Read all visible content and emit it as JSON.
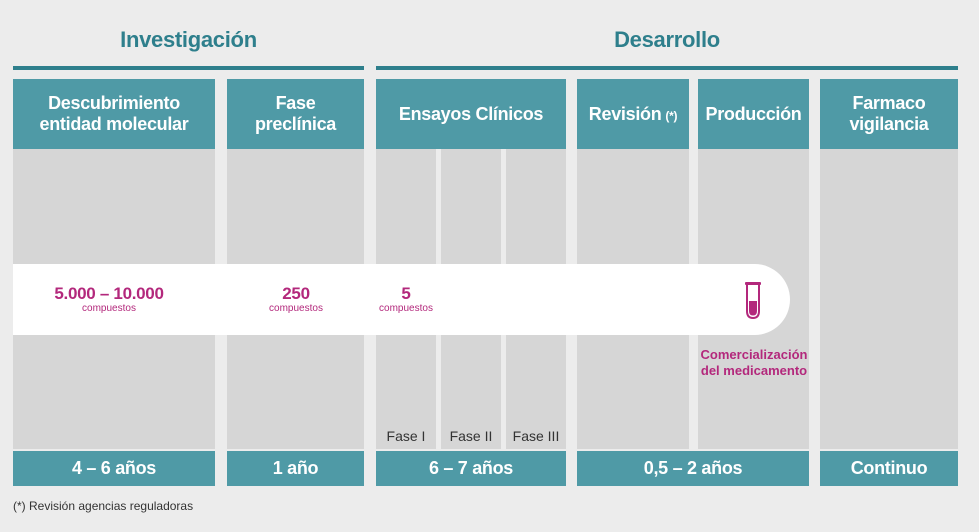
{
  "sections": {
    "investigation": "Investigación",
    "development": "Desarrollo"
  },
  "stages": [
    {
      "label": "Descubrimiento entidad molecular",
      "duration": "4 – 6 años"
    },
    {
      "label": "Fase preclínica",
      "duration": "1 año"
    },
    {
      "label": "Ensayos Clínicos",
      "duration": "6 – 7 años"
    },
    {
      "label": "Revisión",
      "note_mark": "(*)",
      "duration": "0,5 – 2 años"
    },
    {
      "label": "Producción"
    },
    {
      "label": "Farmaco vigilancia",
      "duration": "Continuo"
    }
  ],
  "clinical_phases": [
    "Fase I",
    "Fase II",
    "Fase III"
  ],
  "compounds": [
    {
      "count": "5.000 – 10.000",
      "unit": "compuestos"
    },
    {
      "count": "250",
      "unit": "compuestos"
    },
    {
      "count": "5",
      "unit": "compuestos"
    }
  ],
  "commercialization": "Comercialización del medicamento",
  "footnote": "(*) Revisión agencias reguladoras",
  "icons": [
    "test-tube-icon"
  ],
  "colors": {
    "teal": "#2e7f8c",
    "header_teal": "#4f9aa6",
    "column_gray": "#d6d6d6",
    "magenta": "#b3287c"
  }
}
